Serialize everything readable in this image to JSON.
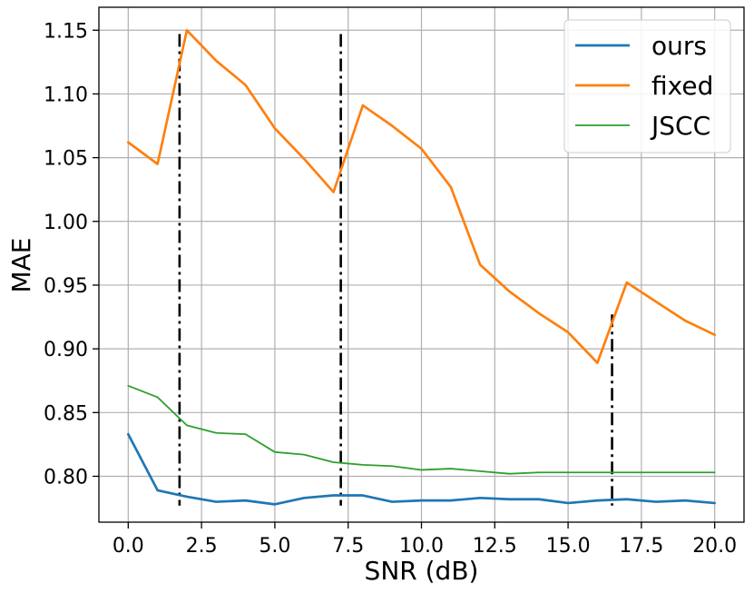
{
  "chart_data": {
    "type": "line",
    "xlabel": "SNR (dB)",
    "ylabel": "MAE",
    "xlim": [
      -1.0,
      21.0
    ],
    "ylim": [
      0.764,
      1.168
    ],
    "xticks": [
      "0.0",
      "2.5",
      "5.0",
      "7.5",
      "10.0",
      "12.5",
      "15.0",
      "17.5",
      "20.0"
    ],
    "yticks": [
      "0.80",
      "0.85",
      "0.90",
      "0.95",
      "1.00",
      "1.05",
      "1.10",
      "1.15"
    ],
    "grid": true,
    "legend_position": "top-right",
    "x": [
      0,
      1,
      2,
      3,
      4,
      5,
      6,
      7,
      8,
      9,
      10,
      11,
      12,
      13,
      14,
      15,
      16,
      17,
      18,
      19,
      20
    ],
    "series": [
      {
        "name": "ours",
        "color": "#1f77b4",
        "values": [
          0.833,
          0.789,
          0.784,
          0.78,
          0.781,
          0.778,
          0.783,
          0.785,
          0.785,
          0.78,
          0.781,
          0.781,
          0.783,
          0.782,
          0.782,
          0.779,
          0.781,
          0.782,
          0.78,
          0.781,
          0.779
        ]
      },
      {
        "name": "fixed",
        "color": "#ff7f0e",
        "values": [
          1.062,
          1.045,
          1.15,
          1.126,
          1.107,
          1.073,
          1.049,
          1.023,
          1.091,
          1.075,
          1.057,
          1.027,
          0.966,
          0.945,
          0.928,
          0.913,
          0.889,
          0.952,
          0.937,
          0.922,
          0.911
        ]
      },
      {
        "name": "JSCC",
        "color": "#2ca02c",
        "values": [
          0.871,
          0.862,
          0.84,
          0.834,
          0.833,
          0.819,
          0.817,
          0.811,
          0.809,
          0.808,
          0.805,
          0.806,
          0.804,
          0.802,
          0.803,
          0.803,
          0.803,
          0.803,
          0.803,
          0.803,
          0.803
        ]
      }
    ],
    "vlines": [
      {
        "x": 1.75,
        "y_range": [
          0.777,
          1.147
        ]
      },
      {
        "x": 7.25,
        "y_range": [
          0.777,
          1.147
        ]
      },
      {
        "x": 16.5,
        "y_range": [
          0.777,
          0.927
        ]
      }
    ]
  }
}
